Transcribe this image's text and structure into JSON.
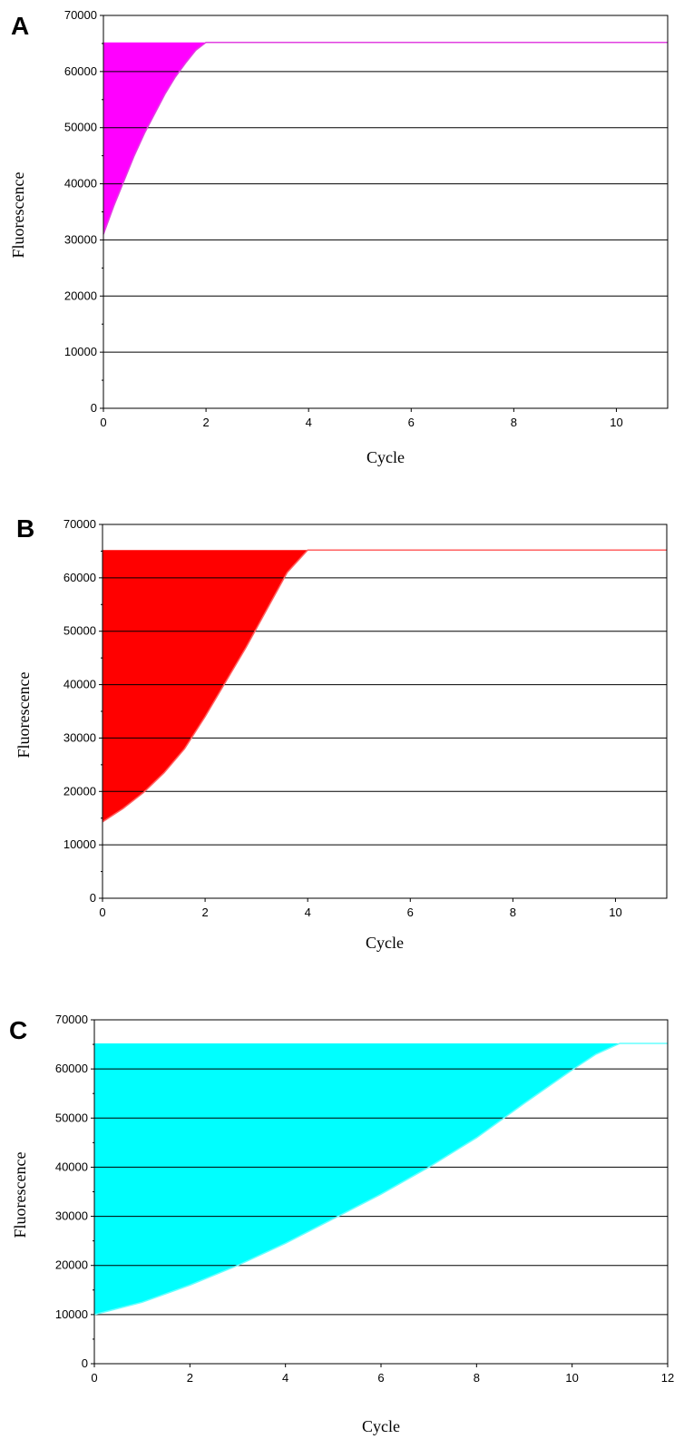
{
  "chart_data": [
    {
      "type": "area",
      "panel_label": "A",
      "xlabel": "Cycle",
      "ylabel": "Fluorescence",
      "xlim": [
        0,
        11
      ],
      "ylim": [
        0,
        70000
      ],
      "xticks": [
        0,
        2,
        4,
        6,
        8,
        10
      ],
      "yticks": [
        0,
        10000,
        20000,
        30000,
        40000,
        50000,
        60000,
        70000
      ],
      "grid": "horizontal",
      "fill_color": "#ff00ff",
      "line_color": "#e040e0",
      "x": [
        0,
        0.2,
        0.4,
        0.6,
        0.8,
        1.0,
        1.2,
        1.4,
        1.6,
        1.8,
        2.0,
        11
      ],
      "y": [
        31000,
        36000,
        40500,
        45000,
        49000,
        52500,
        56000,
        59000,
        61500,
        63800,
        65200,
        65200
      ]
    },
    {
      "type": "area",
      "panel_label": "B",
      "xlabel": "Cycle",
      "ylabel": "Fluorescence",
      "xlim": [
        0,
        11
      ],
      "ylim": [
        0,
        70000
      ],
      "xticks": [
        0,
        2,
        4,
        6,
        8,
        10
      ],
      "yticks": [
        0,
        10000,
        20000,
        30000,
        40000,
        50000,
        60000,
        70000
      ],
      "grid": "horizontal",
      "fill_color": "#ff0000",
      "line_color": "#ff6060",
      "x": [
        0,
        0.4,
        0.8,
        1.2,
        1.6,
        2.0,
        2.4,
        2.8,
        3.2,
        3.6,
        4.0,
        11
      ],
      "y": [
        14300,
        16800,
        19800,
        23500,
        28000,
        34000,
        40500,
        47000,
        54000,
        61000,
        65200,
        65200
      ]
    },
    {
      "type": "area",
      "panel_label": "C",
      "xlabel": "Cycle",
      "ylabel": "Fluorescence",
      "xlim": [
        0,
        12
      ],
      "ylim": [
        0,
        70000
      ],
      "xticks": [
        0,
        2,
        4,
        6,
        8,
        10,
        12
      ],
      "yticks": [
        0,
        10000,
        20000,
        30000,
        40000,
        50000,
        60000,
        70000
      ],
      "grid": "horizontal",
      "fill_color": "#00ffff",
      "line_color": "#66ffff",
      "x": [
        0,
        1,
        2,
        3,
        4,
        5,
        6,
        7,
        8,
        9,
        10,
        10.5,
        11,
        12
      ],
      "y": [
        10000,
        12500,
        16000,
        20000,
        24500,
        29500,
        34500,
        40000,
        46000,
        53000,
        59800,
        63000,
        65200,
        65200
      ]
    }
  ]
}
